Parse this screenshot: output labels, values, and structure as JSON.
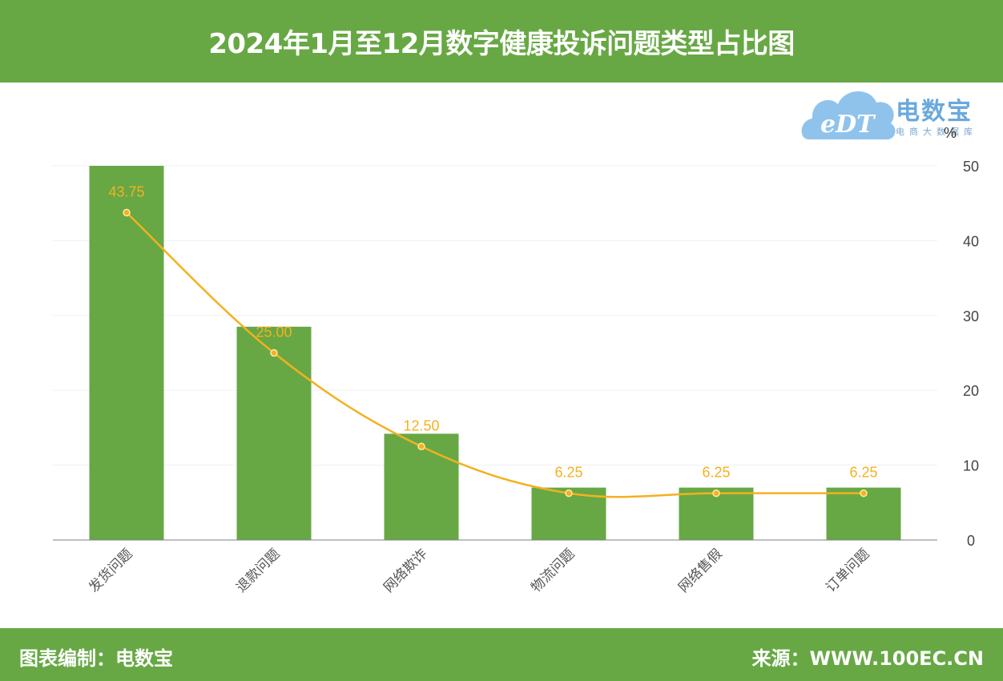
{
  "header": {
    "title": "2024年1月至12月数字健康投诉问题类型占比图"
  },
  "footer": {
    "left": "图表编制：电数宝",
    "right": "来源：WWW.100EC.CN"
  },
  "logo": {
    "name": "电数宝",
    "subtitle": "电商大数据库",
    "mark": "eDT",
    "icon": "cloud-logo-icon"
  },
  "colors": {
    "header_bg": "#67a844",
    "bar": "#67a844",
    "line": "#f5b020",
    "label": "#f5b020"
  },
  "chart_data": {
    "type": "bar",
    "categories": [
      "发货问题",
      "退款问题",
      "网络欺诈",
      "物流问题",
      "网络售假",
      "订单问题"
    ],
    "series": [
      {
        "type": "bar",
        "values": [
          50,
          28.5,
          14.2,
          7,
          7,
          7
        ]
      },
      {
        "type": "line",
        "values": [
          43.75,
          25.0,
          12.5,
          6.25,
          6.25,
          6.25
        ]
      }
    ],
    "data_labels": [
      "43.75",
      "25.00",
      "12.50",
      "6.25",
      "6.25",
      "6.25"
    ],
    "yaxis_unit": "%",
    "yticks": [
      "0",
      "10",
      "20",
      "30",
      "40",
      "50"
    ],
    "ylim": [
      0,
      50
    ],
    "y_axis_position": "right",
    "grid": true
  }
}
